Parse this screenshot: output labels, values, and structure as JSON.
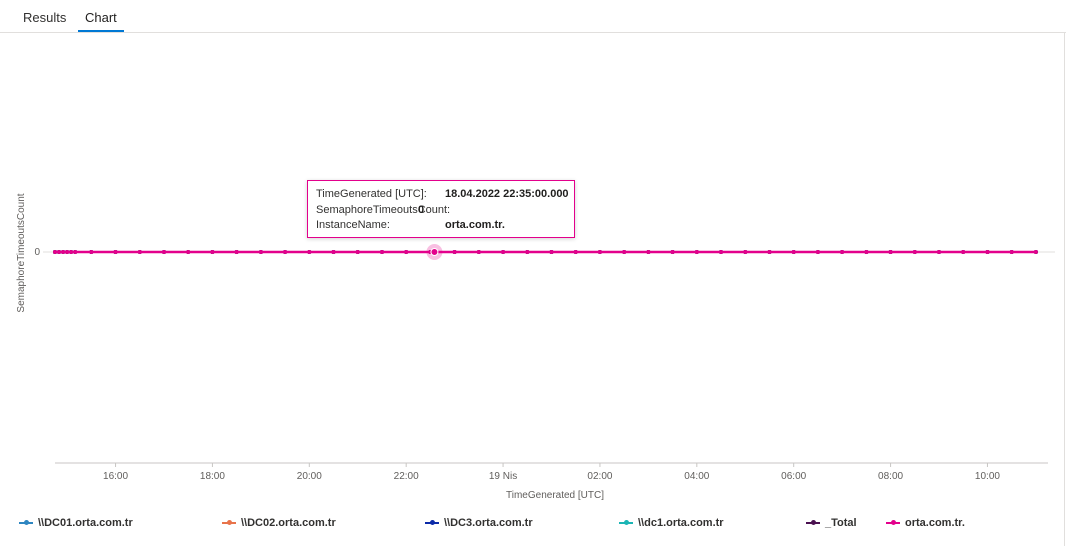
{
  "tabs": [
    {
      "label": "Results",
      "active": false
    },
    {
      "label": "Chart",
      "active": true
    }
  ],
  "chart_data": {
    "type": "line",
    "xlabel": "TimeGenerated [UTC]",
    "ylabel": "SemaphoreTimeoutsCount",
    "y_ticks": [
      "0"
    ],
    "x_tick_labels": [
      "16:00",
      "18:00",
      "20:00",
      "22:00",
      "19 Nis",
      "02:00",
      "04:00",
      "06:00",
      "08:00",
      "10:00"
    ],
    "x_range": [
      "2022-04-18 14:45",
      "2022-04-19 11:15"
    ],
    "grid": false,
    "legend_position": "bottom",
    "series": [
      {
        "name": "\\\\DC01.orta.com.tr",
        "color": "#2e86c1",
        "value": 0
      },
      {
        "name": "\\\\DC02.orta.com.tr",
        "color": "#e8734a",
        "value": 0
      },
      {
        "name": "\\\\DC3.orta.com.tr",
        "color": "#0b2aa8",
        "value": 0
      },
      {
        "name": "\\\\dc1.orta.com.tr",
        "color": "#1bb5b5",
        "value": 0
      },
      {
        "name": "_Total",
        "color": "#4a1050",
        "value": 0
      },
      {
        "name": "orta.com.tr.",
        "color": "#e3008c",
        "value": 0
      }
    ],
    "highlighted_point": {
      "x": "2022-04-18 22:35",
      "y": 0,
      "series": "orta.com.tr."
    }
  },
  "tooltip": {
    "rows": [
      {
        "key": "TimeGenerated [UTC]:",
        "value": "18.04.2022 22:35:00.000"
      },
      {
        "key": "SemaphoreTimeoutsCount:",
        "value": "0"
      },
      {
        "key": "InstanceName:",
        "value": "orta.com.tr."
      }
    ]
  }
}
